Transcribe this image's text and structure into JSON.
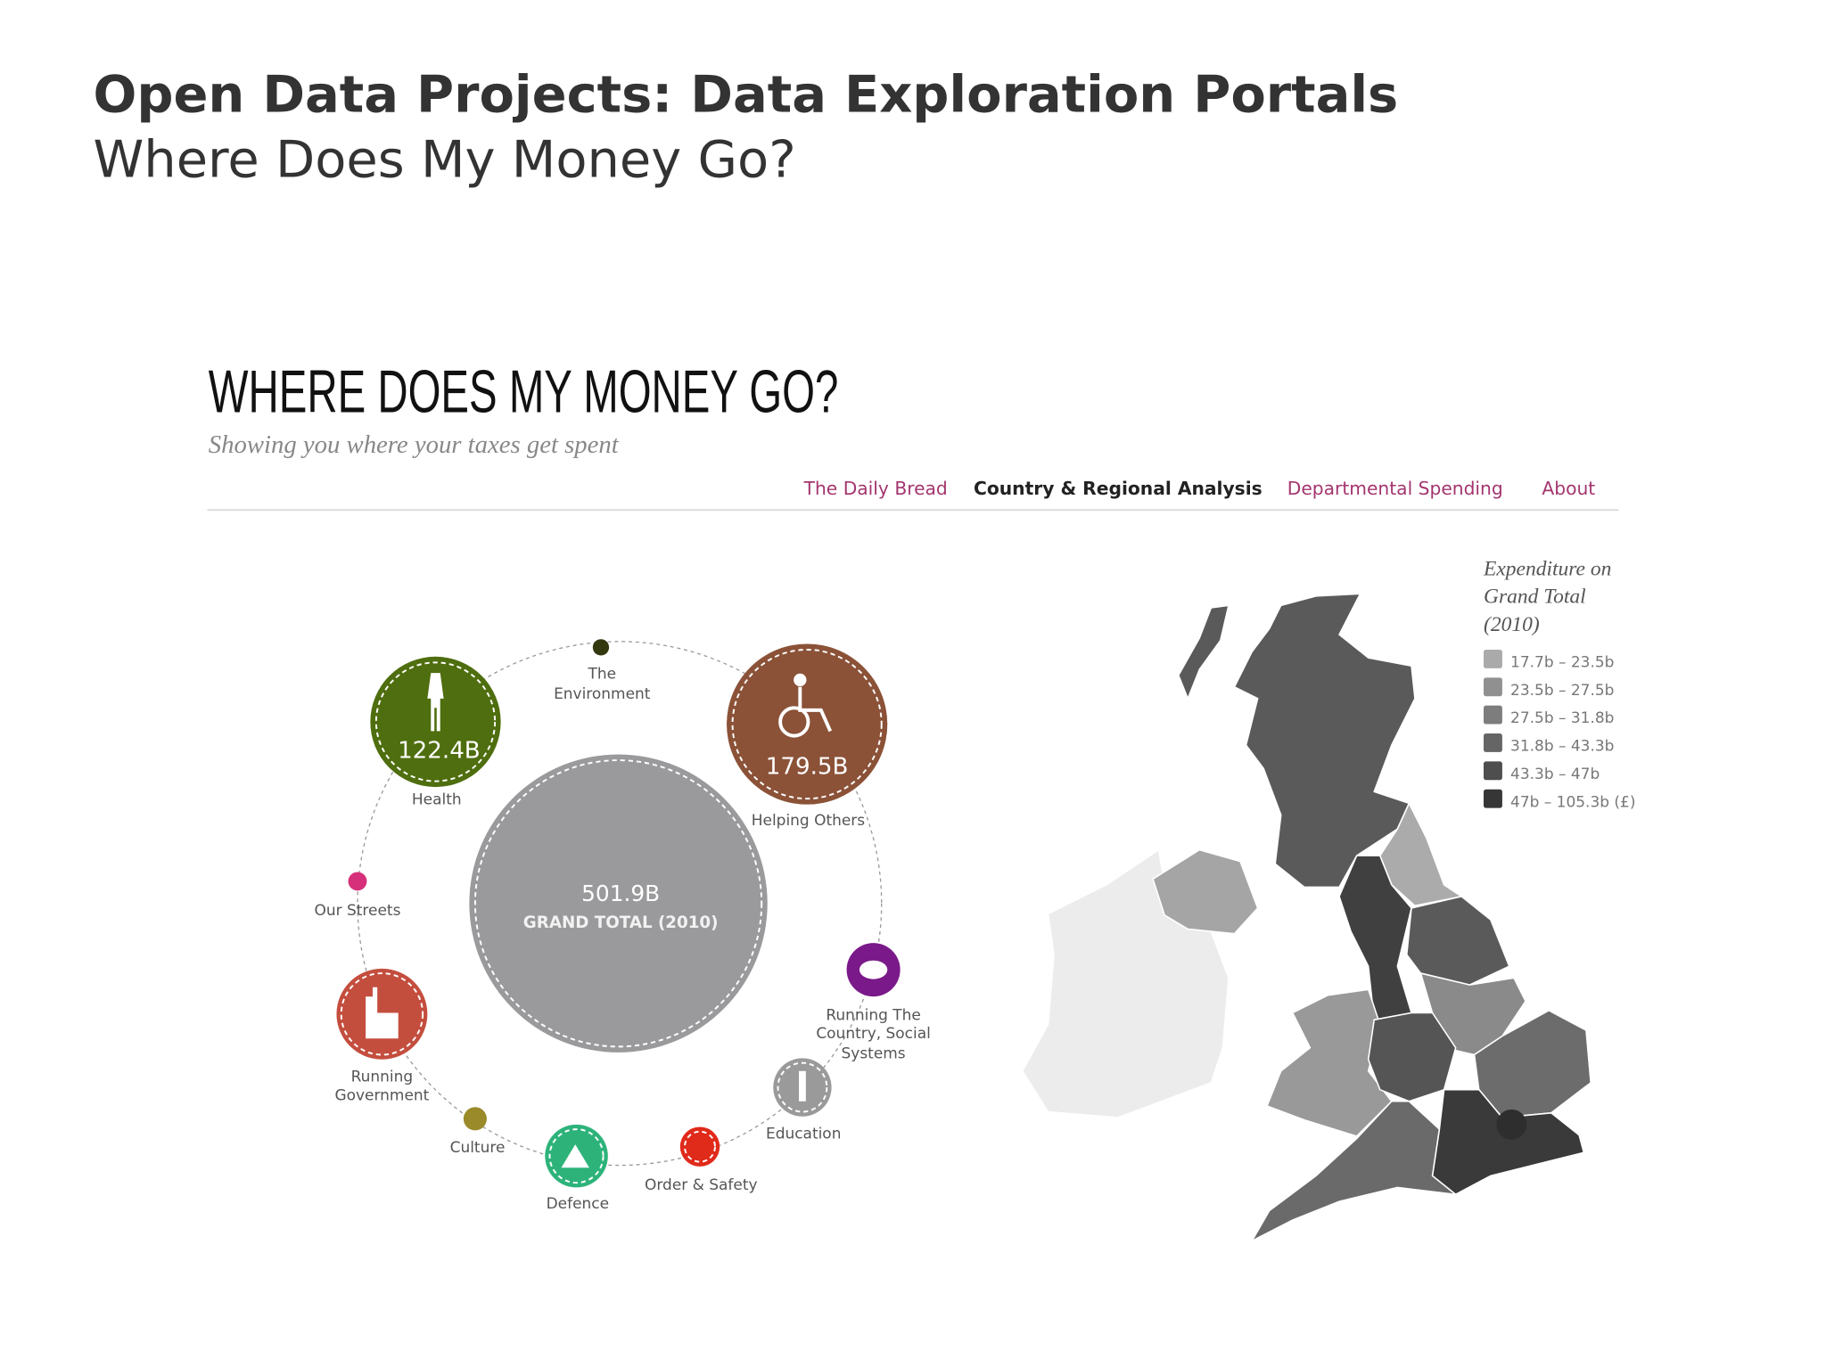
{
  "slide": {
    "title": "Open Data Projects: Data Exploration Portals",
    "subtitle": "Where Does My Money Go?"
  },
  "site": {
    "title": "WHERE DOES MY MONEY GO?",
    "tagline": "Showing you where your taxes get spent",
    "nav": [
      "The Daily Bread",
      "Country & Regional Analysis",
      "Departmental Spending",
      "About"
    ]
  },
  "bubbles": {
    "total": {
      "value": "501.9B",
      "label": "GRAND TOTAL (2010)"
    },
    "items": [
      {
        "label": [
          "The",
          "Environment"
        ]
      },
      {
        "label": [
          "Health"
        ],
        "value": "122.4B"
      },
      {
        "label": [
          "Helping Others"
        ],
        "value": "179.5B"
      },
      {
        "label": [
          "Our Streets"
        ]
      },
      {
        "label": [
          "Running The",
          "Country, Social",
          "Systems"
        ]
      },
      {
        "label": [
          "Running",
          "Government"
        ]
      },
      {
        "label": [
          "Education"
        ]
      },
      {
        "label": [
          "Culture"
        ]
      },
      {
        "label": [
          "Defence"
        ]
      },
      {
        "label": [
          "Order & Safety"
        ]
      }
    ]
  },
  "legend": {
    "title": [
      "Expenditure on",
      "Grand Total",
      "(2010)"
    ],
    "items": [
      "17.7b – 23.5b",
      "23.5b – 27.5b",
      "27.5b – 31.8b",
      "31.8b – 43.3b",
      "43.3b – 47b",
      "47b – 105.3b (£)"
    ]
  }
}
